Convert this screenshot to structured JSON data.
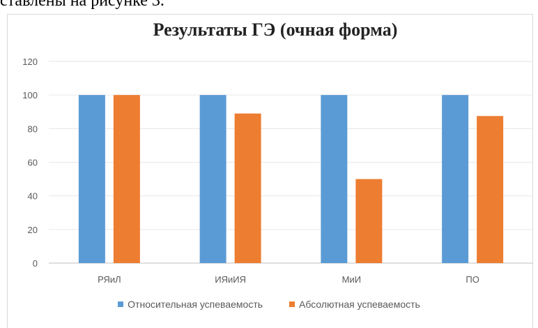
{
  "caption": "ставлены на рисунке 3.",
  "chart_data": {
    "type": "bar",
    "title": "Результаты ГЭ (очная форма)",
    "xlabel": "",
    "ylabel": "",
    "categories": [
      "РЯиЛ",
      "ИЯиИЯ",
      "МиИ",
      "ПО"
    ],
    "series": [
      {
        "name": "Относительная успеваемость",
        "color": "#5b9bd5",
        "values": [
          100,
          100,
          100,
          100
        ]
      },
      {
        "name": "Абсолютная успеваемость",
        "color": "#ed7d31",
        "values": [
          100,
          89,
          50,
          87.5
        ]
      }
    ],
    "ylim": [
      0,
      120
    ],
    "yticks": [
      0,
      20,
      40,
      60,
      80,
      100,
      120
    ],
    "grid": true,
    "legend_position": "bottom"
  }
}
